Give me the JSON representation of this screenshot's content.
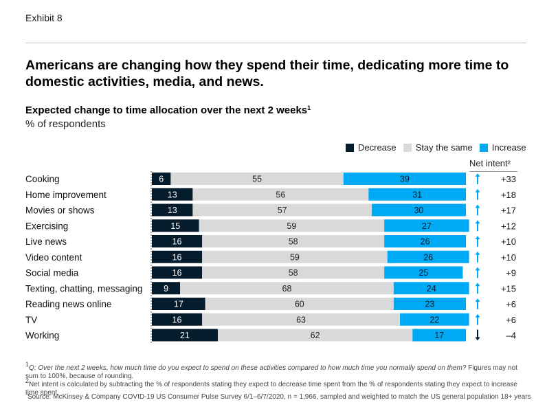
{
  "header": {
    "exhibit": "Exhibit 8",
    "title": "Americans are changing how they spend their time, dedicating more time to domestic activities, media, and news.",
    "subtitle": "Expected change to time allocation over the next 2 weeks",
    "subtitle_sup": "1",
    "unit": "% of respondents"
  },
  "legend": {
    "items": [
      {
        "label": "Decrease",
        "color": "#051c2c"
      },
      {
        "label": "Stay the same",
        "color": "#d9d9d9"
      },
      {
        "label": "Increase",
        "color": "#00a9f4"
      }
    ]
  },
  "net_intent_header": "Net intent²",
  "chart_data": {
    "type": "bar",
    "stacked": true,
    "orientation": "horizontal",
    "categories": [
      "Cooking",
      "Home improvement",
      "Movies or shows",
      "Exercising",
      "Live news",
      "Video content",
      "Social media",
      "Texting, chatting, messaging",
      "Reading news online",
      "TV",
      "Working"
    ],
    "series": [
      {
        "name": "Decrease",
        "color": "#051c2c",
        "values": [
          6,
          13,
          13,
          15,
          16,
          16,
          16,
          9,
          17,
          16,
          21
        ]
      },
      {
        "name": "Stay the same",
        "color": "#d9d9d9",
        "values": [
          55,
          56,
          57,
          59,
          58,
          59,
          58,
          68,
          60,
          63,
          62
        ]
      },
      {
        "name": "Increase",
        "color": "#00a9f4",
        "values": [
          39,
          31,
          30,
          27,
          26,
          26,
          25,
          24,
          23,
          22,
          17
        ]
      }
    ],
    "net_intent": [
      "+33",
      "+18",
      "+17",
      "+12",
      "+10",
      "+10",
      "+9",
      "+15",
      "+6",
      "+6",
      "–4"
    ],
    "net_direction": [
      "up",
      "up",
      "up",
      "up",
      "up",
      "up",
      "up",
      "up",
      "up",
      "up",
      "down"
    ],
    "arrow_colors": {
      "up": "#00a9f4",
      "down": "#051c2c"
    },
    "xlim": [
      0,
      100
    ]
  },
  "footnotes": {
    "note1_sup": "1",
    "note1_q": "Q: Over the next 2 weeks, how much time do you expect to spend on these activities compared to how much time you normally spend on them?",
    "note1_rest": " Figures may not sum to 100%, because of rounding.",
    "note2_sup": "2",
    "note2": "Net intent is calculated by subtracting the % of respondents stating they expect to decrease time spent from the % of respondents stating they expect to increase time spent.",
    "source": "Source: McKinsey & Company COVID-19 US Consumer Pulse Survey 6/1–6/7/2020, n = 1,966, sampled and weighted to match the US general population 18+ years"
  }
}
